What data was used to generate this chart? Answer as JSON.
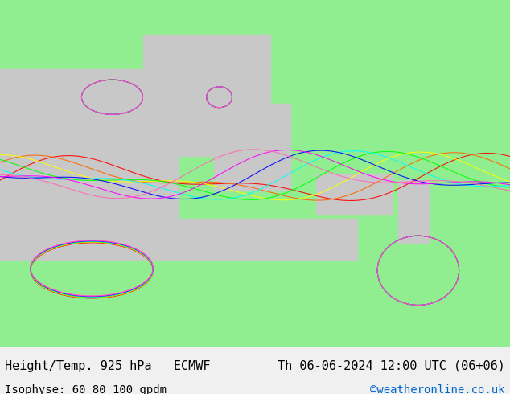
{
  "title_left": "Height/Temp. 925 hPa   ECMWF",
  "title_right": "Th 06-06-2024 12:00 UTC (06+06)",
  "subtitle_left": "Isophyse: 60 80 100 gpdm",
  "subtitle_right": "©weatheronline.co.uk",
  "subtitle_right_color": "#0066cc",
  "background_color": "#f0f0f0",
  "map_bg_color": "#90ee90",
  "land_color": "#90ee90",
  "water_color": "#d3d3d3",
  "bottom_bar_color": "#f0f0f0",
  "text_color": "#000000",
  "font_size_title": 11,
  "font_size_subtitle": 10,
  "fig_width": 6.34,
  "fig_height": 4.9,
  "dpi": 100
}
